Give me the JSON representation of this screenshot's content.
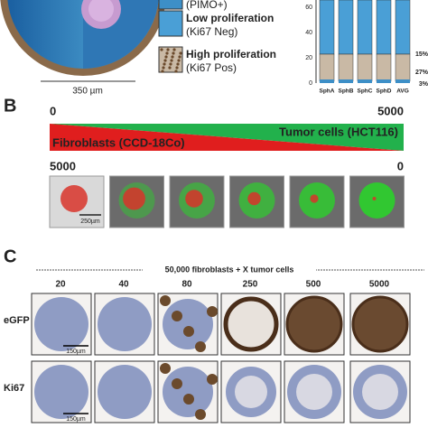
{
  "panel_a": {
    "legend": [
      {
        "title": null,
        "sub": "(PIMO+)"
      },
      {
        "title": "Low proliferation",
        "sub": "(Ki67 Neg)"
      },
      {
        "title": "High proliferation",
        "sub": "(Ki67 Pos)"
      }
    ],
    "scale": "350 µm",
    "chart": {
      "yticks": [
        "60",
        "40",
        "20",
        "0"
      ],
      "categories": [
        "SphA",
        "SphB",
        "SphC",
        "SphD",
        "AVG"
      ],
      "percent_labels": [
        "15%",
        "27%",
        "3%"
      ]
    }
  },
  "panel_b": {
    "label": "B",
    "top_left": "0",
    "top_right": "5000",
    "tumor": "Tumor cells (HCT116)",
    "fibroblasts": "Fibroblasts (CCD-18Co)",
    "bottom_left": "5000",
    "bottom_right": "0",
    "scale": "250µm"
  },
  "panel_c": {
    "label": "C",
    "header": "50,000 fibroblasts + X tumor cells",
    "columns": [
      "20",
      "40",
      "80",
      "250",
      "500",
      "5000"
    ],
    "rows": [
      "eGFP",
      "Ki67"
    ],
    "scale": "150µm"
  }
}
